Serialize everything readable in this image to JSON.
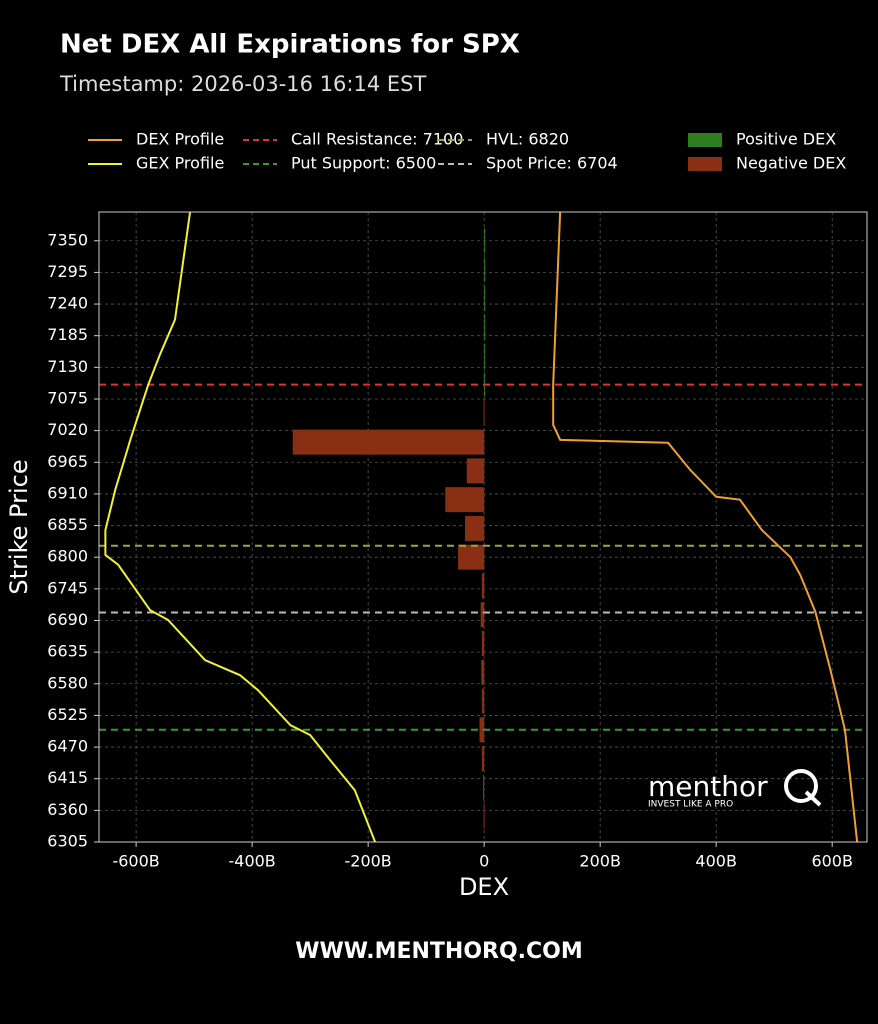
{
  "chart_data": {
    "type": "bar",
    "orientation": "horizontal",
    "title": "Net DEX All Expirations for SPX",
    "subtitle": "Timestamp: 2026-03-16 16:14 EST",
    "xlabel": "DEX",
    "ylabel": "Strike Price",
    "xlim": [
      -664,
      660
    ],
    "ylim": [
      6305,
      7400
    ],
    "xticks": [
      {
        "value": -600,
        "label": "-600B"
      },
      {
        "value": -400,
        "label": "-400B"
      },
      {
        "value": -200,
        "label": "-200B"
      },
      0,
      {
        "value": 200,
        "label": "200B"
      },
      {
        "value": 400,
        "label": "400B"
      },
      {
        "value": 600,
        "label": "600B"
      }
    ],
    "yticks": [
      6305,
      6360,
      6415,
      6470,
      6525,
      6580,
      6635,
      6690,
      6745,
      6800,
      6855,
      6910,
      6965,
      7020,
      7075,
      7130,
      7185,
      7240,
      7295,
      7350
    ],
    "grid": true,
    "bars": {
      "strikes": [
        7350,
        7300,
        7250,
        7200,
        7150,
        7100,
        7050,
        7000,
        6950,
        6900,
        6850,
        6800,
        6750,
        6700,
        6650,
        6600,
        6550,
        6500,
        6450,
        6400,
        6350
      ],
      "values": [
        1,
        1,
        1,
        1,
        1,
        1,
        -1,
        -330,
        -30,
        -67,
        -33,
        -45,
        -4,
        -6,
        -4,
        -5,
        -4,
        -8,
        -4,
        -2,
        -1
      ],
      "positive_name": "Positive DEX",
      "positive_color": "#2e7d1f",
      "negative_name": "Negative DEX",
      "negative_color": "#8b2f14"
    },
    "lines": [
      {
        "name": "DEX Profile",
        "color": "#f0a030",
        "dex": [
          131,
          119,
          119,
          131,
          317,
          355,
          400,
          441,
          479,
          528,
          545,
          571,
          597,
          622,
          643
        ],
        "strike": [
          7400,
          7100,
          7030,
          7004,
          6999,
          6952,
          6905,
          6900,
          6847,
          6800,
          6769,
          6705,
          6604,
          6500,
          6305
        ]
      },
      {
        "name": "GEX Profile",
        "color": "#f2f230",
        "dex": [
          -507,
          -533,
          -559,
          -579,
          -610,
          -636,
          -653,
          -653,
          -631,
          -576,
          -545,
          -481,
          -421,
          -390,
          -334,
          -300,
          -266,
          -223,
          -188
        ],
        "strike": [
          7400,
          7213,
          7152,
          7100,
          7004,
          6917,
          6847,
          6804,
          6787,
          6708,
          6691,
          6621,
          6595,
          6569,
          6508,
          6491,
          6448,
          6395,
          6305
        ]
      }
    ],
    "ref_lines": [
      {
        "name": "Call Resistance: 7100",
        "value": 7100,
        "color": "#e03030"
      },
      {
        "name": "Put Support: 6500",
        "value": 6500,
        "color": "#3a9a2a"
      },
      {
        "name": "HVL: 6820",
        "value": 6820,
        "color": "#9aa83a"
      },
      {
        "name": "Spot Price: 6704",
        "value": 6704,
        "color": "#bbbbbb"
      }
    ],
    "watermark": {
      "brand": "menthor",
      "tagline": "INVEST LIKE A PRO"
    },
    "footer": "WWW.MENTHORQ.COM"
  }
}
